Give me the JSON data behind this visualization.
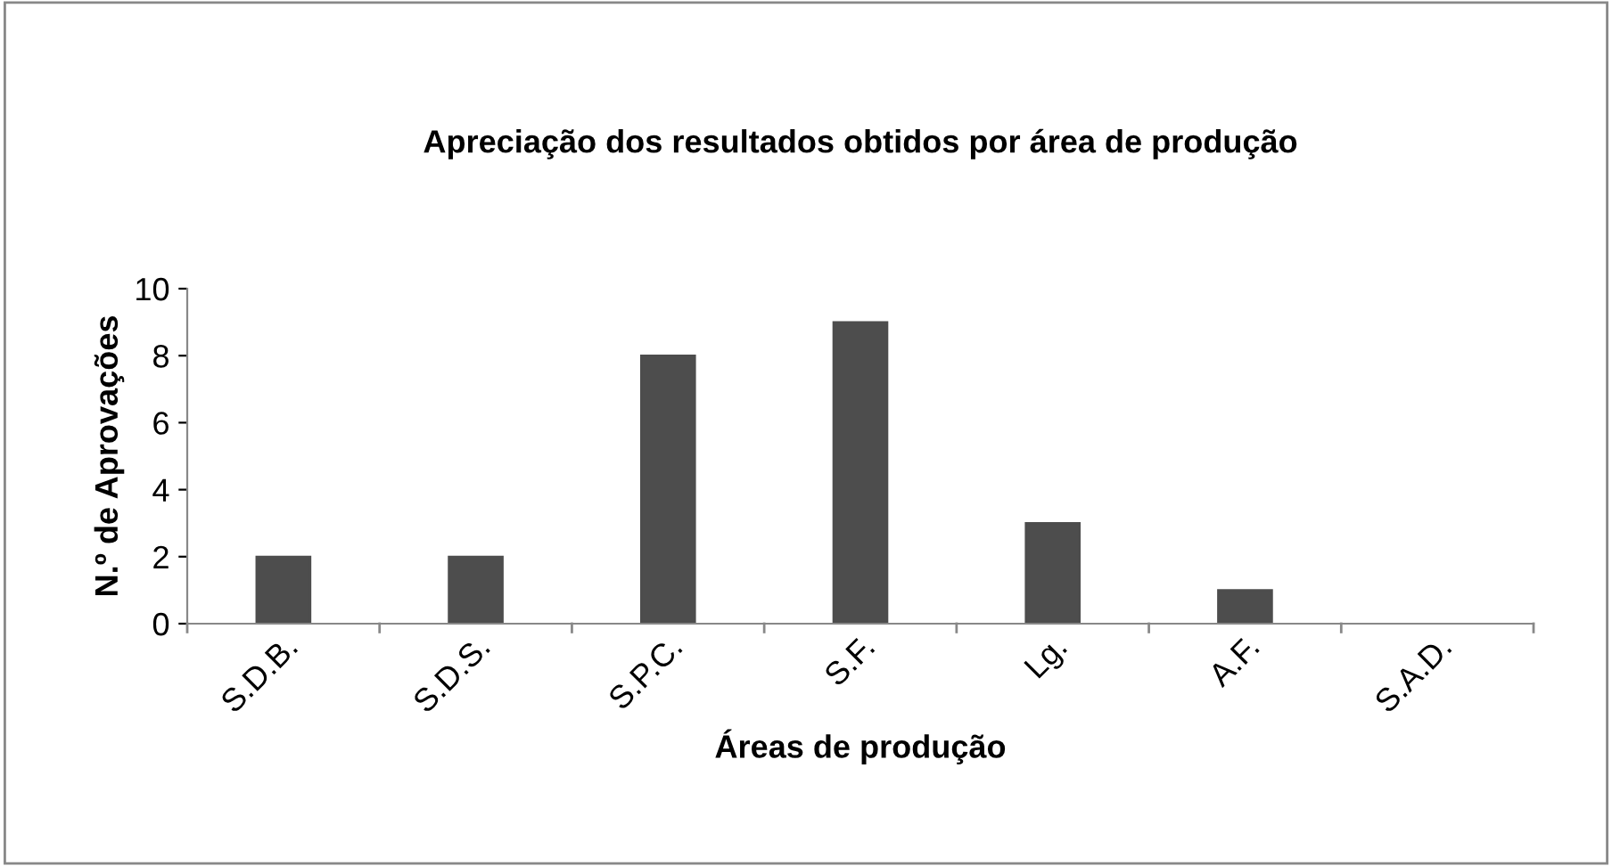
{
  "chart_data": {
    "type": "bar",
    "title": "Apreciação dos resultados obtidos por área de produção",
    "xlabel": "Áreas de produção",
    "ylabel": "N.º de Aprovações",
    "categories": [
      "S.D.B.",
      "S.D.S.",
      "S.P.C.",
      "S.F.",
      "Lg.",
      "A.F.",
      "S.A.D."
    ],
    "values": [
      2,
      2,
      8,
      9,
      3,
      1,
      0
    ],
    "color": "#4d4d4d",
    "ylim": [
      0,
      10
    ],
    "yticks": [
      0,
      2,
      4,
      6,
      8,
      10
    ],
    "grid": false,
    "legend": false
  }
}
